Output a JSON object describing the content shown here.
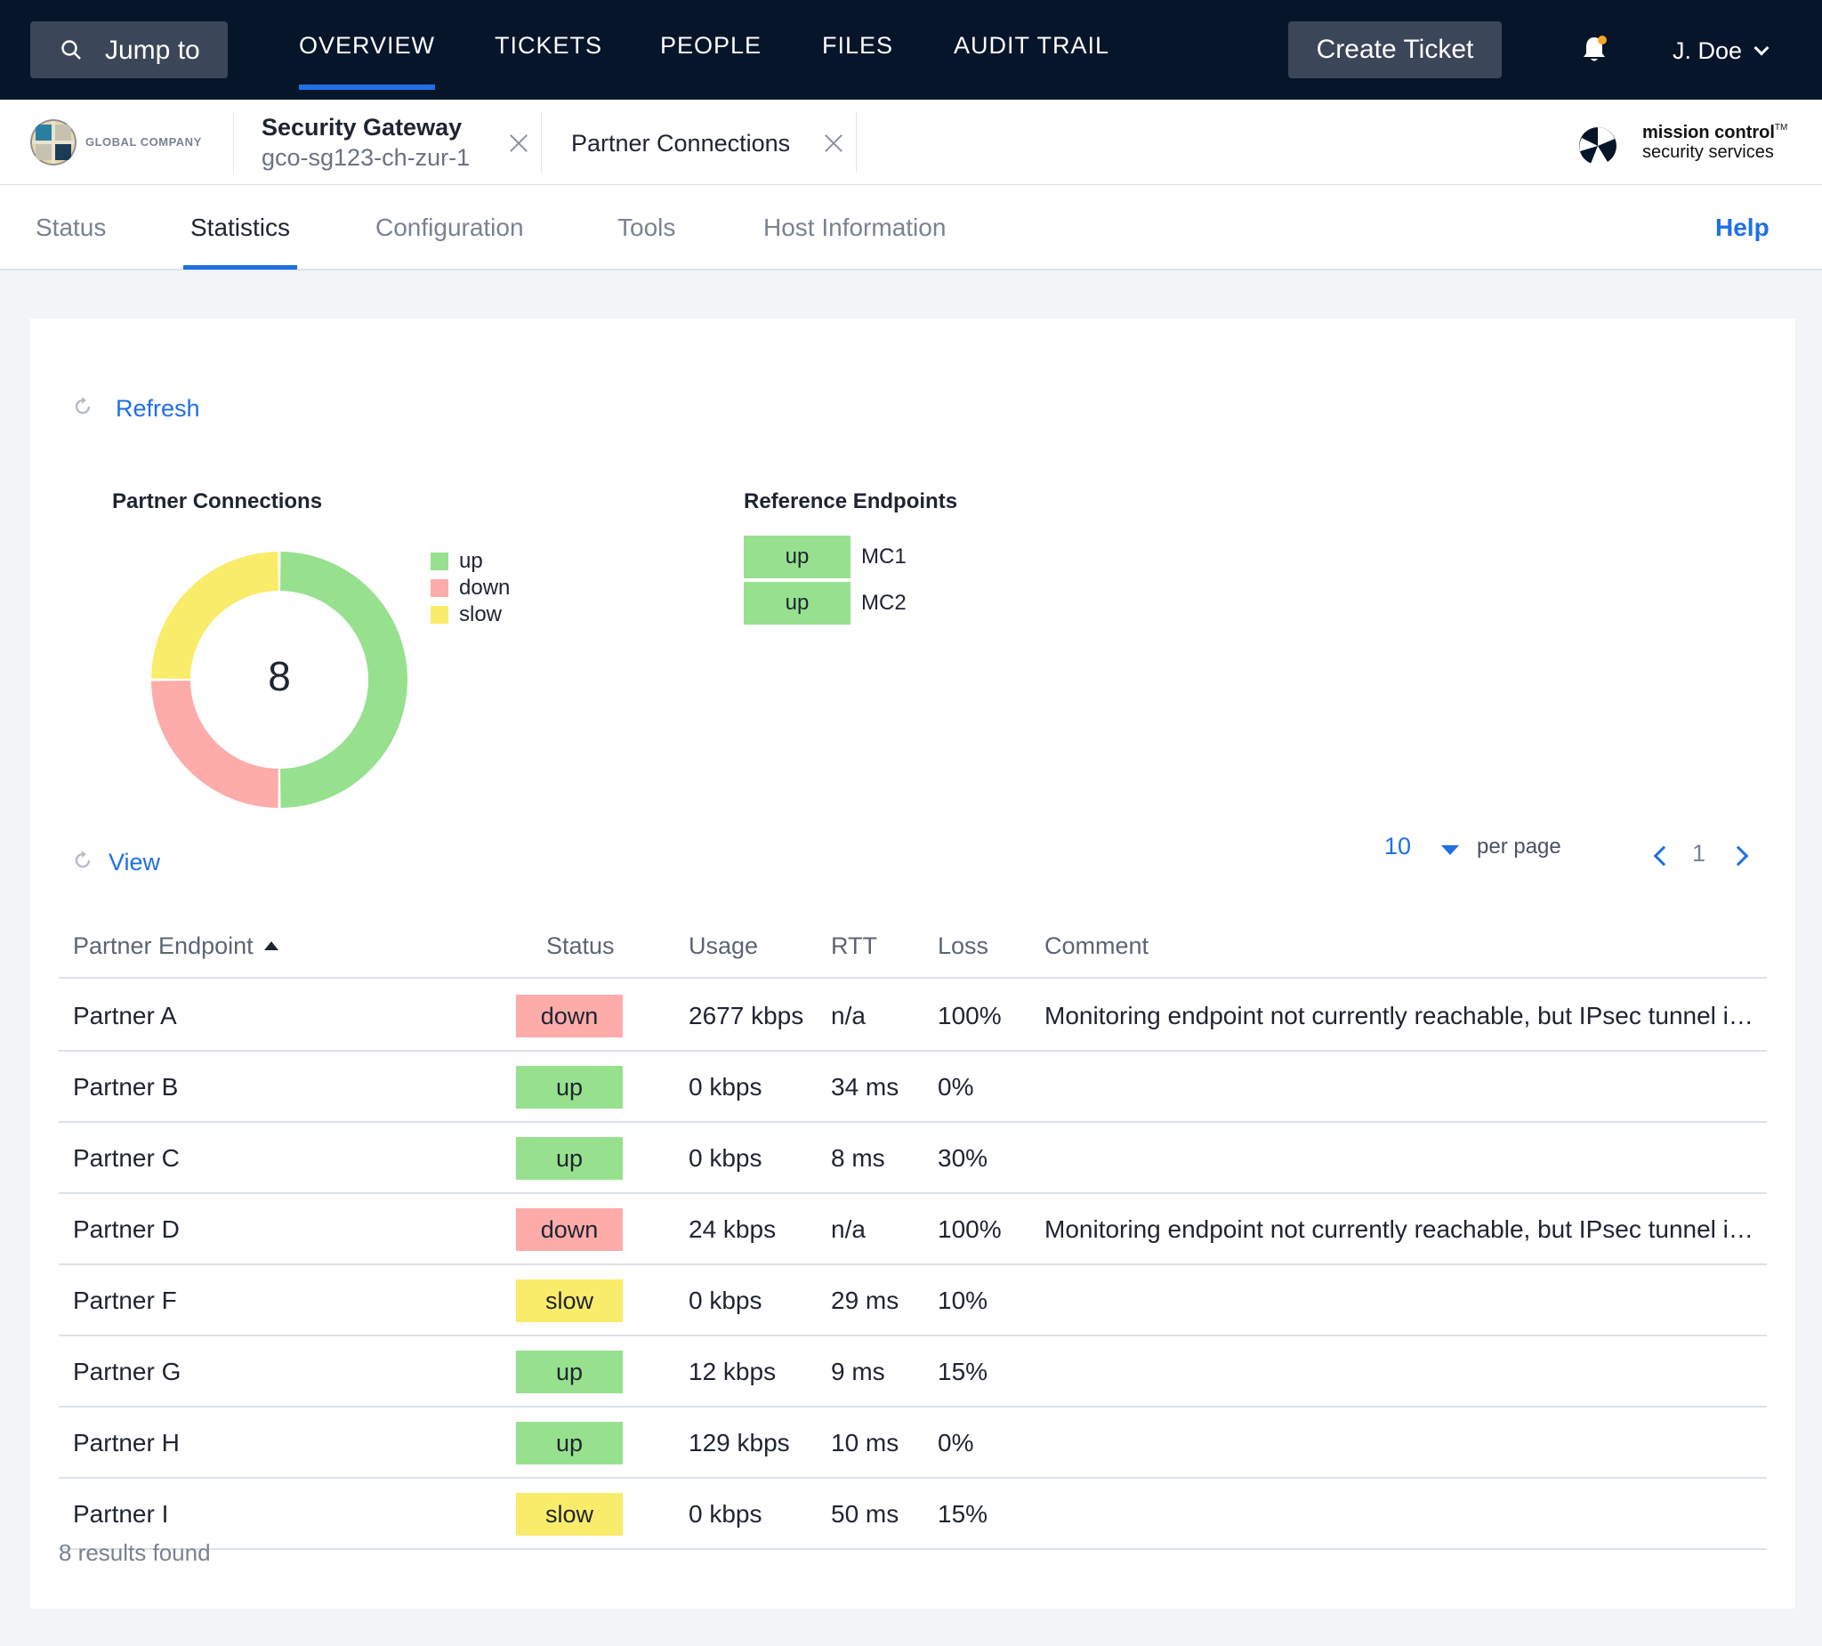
{
  "topbar": {
    "jump_label": "Jump to",
    "nav": [
      "OVERVIEW",
      "TICKETS",
      "PEOPLE",
      "FILES",
      "AUDIT TRAIL"
    ],
    "create_ticket": "Create Ticket",
    "user": "J. Doe"
  },
  "subbar": {
    "company": "GLOBAL COMPANY",
    "tab1_title": "Security Gateway",
    "tab1_sub": "gco-sg123-ch-zur-1",
    "tab2_title": "Partner Connections",
    "brand_name": "mission control",
    "brand_tm": "TM",
    "brand_sub": "security services"
  },
  "sections": {
    "tabs": [
      "Status",
      "Statistics",
      "Configuration",
      "Tools",
      "Host Information"
    ],
    "active": "Statistics",
    "help": "Help"
  },
  "colors": {
    "up": "#97e18e",
    "down": "#fdacaa",
    "slow": "#f9ec6a",
    "accent": "#1f6fe5",
    "topbar": "#07152b"
  },
  "card": {
    "refresh": "Refresh",
    "partner_title": "Partner Connections",
    "total": "8",
    "legend": [
      "up",
      "down",
      "slow"
    ],
    "reference_title": "Reference Endpoints",
    "reference": [
      {
        "status": "up",
        "name": "MC1"
      },
      {
        "status": "up",
        "name": "MC2"
      }
    ],
    "view": "View",
    "per_page_value": "10",
    "per_page_label": "per page",
    "page": "1",
    "results": "8 results found"
  },
  "chart_data": {
    "type": "pie",
    "donut": true,
    "center_label": "8",
    "categories": [
      "up",
      "down",
      "slow"
    ],
    "values": [
      4,
      2,
      2
    ]
  },
  "table": {
    "headers": [
      "Partner Endpoint",
      "Status",
      "Usage",
      "RTT",
      "Loss",
      "Comment"
    ],
    "rows": [
      {
        "name": "Partner A",
        "status": "down",
        "usage": "2677 kbps",
        "rtt": "n/a",
        "loss": "100%",
        "comment": "Monitoring endpoint not currently reachable, but IPsec tunnel is up"
      },
      {
        "name": "Partner B",
        "status": "up",
        "usage": "0 kbps",
        "rtt": "34 ms",
        "loss": "0%",
        "comment": ""
      },
      {
        "name": "Partner C",
        "status": "up",
        "usage": "0 kbps",
        "rtt": "8 ms",
        "loss": "30%",
        "comment": ""
      },
      {
        "name": "Partner D",
        "status": "down",
        "usage": "24 kbps",
        "rtt": "n/a",
        "loss": "100%",
        "comment": "Monitoring endpoint not currently reachable, but IPsec tunnel is up"
      },
      {
        "name": "Partner F",
        "status": "slow",
        "usage": "0 kbps",
        "rtt": "29 ms",
        "loss": "10%",
        "comment": ""
      },
      {
        "name": "Partner G",
        "status": "up",
        "usage": "12 kbps",
        "rtt": "9 ms",
        "loss": "15%",
        "comment": ""
      },
      {
        "name": "Partner H",
        "status": "up",
        "usage": "129 kbps",
        "rtt": "10 ms",
        "loss": "0%",
        "comment": ""
      },
      {
        "name": "Partner I",
        "status": "slow",
        "usage": "0 kbps",
        "rtt": "50 ms",
        "loss": "15%",
        "comment": ""
      }
    ]
  }
}
